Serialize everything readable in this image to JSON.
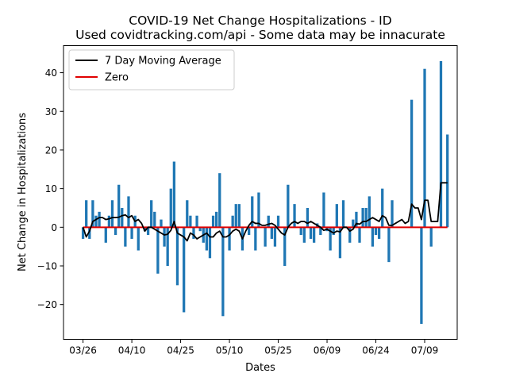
{
  "chart_data": {
    "type": "bar",
    "title": "COVID-19 Net Change Hospitalizations - ID",
    "subtitle": "Used covidtracking.com/api - Some data may be innacurate",
    "xlabel": "Dates",
    "ylabel": "Net Change in Hospitalizations",
    "start_date": "03/26",
    "xticks": [
      {
        "day": 0,
        "label": "03/26"
      },
      {
        "day": 15,
        "label": "04/10"
      },
      {
        "day": 30,
        "label": "04/25"
      },
      {
        "day": 45,
        "label": "05/10"
      },
      {
        "day": 60,
        "label": "05/25"
      },
      {
        "day": 75,
        "label": "06/09"
      },
      {
        "day": 90,
        "label": "06/24"
      },
      {
        "day": 105,
        "label": "07/09"
      }
    ],
    "yticks": [
      -20,
      -10,
      0,
      10,
      20,
      30,
      40
    ],
    "ylim": [
      -29,
      47
    ],
    "xlim": [
      -6,
      115
    ],
    "legend": {
      "position": "top-left",
      "entries": [
        {
          "label": "7 Day Moving Average",
          "color": "#000000"
        },
        {
          "label": "Zero",
          "color": "#e00000"
        }
      ]
    },
    "bar_color": "#1f77b4",
    "grid": false,
    "series": [
      {
        "name": "Daily Net Change",
        "kind": "bar",
        "values": [
          -3,
          7,
          -3,
          7,
          3,
          4,
          0,
          -4,
          3,
          7,
          -2,
          11,
          5,
          -5,
          8,
          -3,
          3,
          -6,
          0,
          -1,
          -2,
          7,
          4,
          -12,
          2,
          -5,
          -10,
          10,
          17,
          -15,
          0,
          -22,
          7,
          3,
          -3,
          3,
          -1,
          -4,
          -6,
          -8,
          3,
          4,
          14,
          -23,
          0,
          -6,
          3,
          6,
          6,
          -6,
          0,
          -2,
          8,
          -6,
          9,
          0,
          -5,
          3,
          -3,
          -5,
          3,
          0,
          -10,
          11,
          0,
          6,
          0,
          -2,
          -4,
          5,
          -3,
          -4,
          1,
          -2,
          9,
          -1,
          -6,
          -2,
          6,
          -8,
          7,
          0,
          -4,
          2,
          4,
          -4,
          5,
          5,
          8,
          -5,
          -2,
          -3,
          10,
          0,
          -9,
          7,
          0,
          0,
          0,
          0,
          0,
          33,
          0,
          0,
          -25,
          41,
          0,
          -5,
          0,
          0,
          43,
          0,
          24
        ]
      },
      {
        "name": "7 Day Moving Average",
        "kind": "line",
        "color": "#000000",
        "values": [
          0,
          -2.5,
          -1,
          1.5,
          2,
          2.5,
          2.5,
          2,
          2.2,
          2.5,
          2.5,
          2.6,
          3,
          3.2,
          2.5,
          3,
          1.5,
          2,
          1,
          -1,
          0,
          0,
          -0.5,
          -1,
          -1.5,
          -2,
          -1.8,
          -0.8,
          1.5,
          -1.5,
          -2,
          -2.5,
          -3.5,
          -1.5,
          -2,
          -3,
          -2.5,
          -2,
          -1.5,
          -2.5,
          -2.5,
          -1.5,
          -1,
          -2.5,
          -2.5,
          -2,
          -1,
          -0.5,
          -1,
          -3,
          -1,
          0.5,
          1.5,
          1,
          1,
          0.5,
          0.5,
          0.8,
          1,
          0.5,
          -0.5,
          -1.5,
          -2,
          0,
          1,
          1.5,
          1,
          1.5,
          1.5,
          1,
          1.5,
          1,
          0.5,
          0,
          -0.8,
          -0.5,
          -1,
          -1.5,
          -1,
          -1.2,
          0,
          0,
          -1,
          -0.5,
          1,
          0.8,
          1.5,
          1.5,
          2,
          2.5,
          2,
          1.5,
          3,
          2.5,
          0.5,
          0.5,
          1,
          1.5,
          2,
          1,
          1.5,
          6,
          5,
          5,
          2,
          7,
          7,
          1.5,
          1.5,
          1.5,
          11.5,
          11.5,
          11.5
        ]
      },
      {
        "name": "Zero",
        "kind": "line",
        "color": "#e00000",
        "values": [
          0,
          0
        ]
      }
    ]
  }
}
